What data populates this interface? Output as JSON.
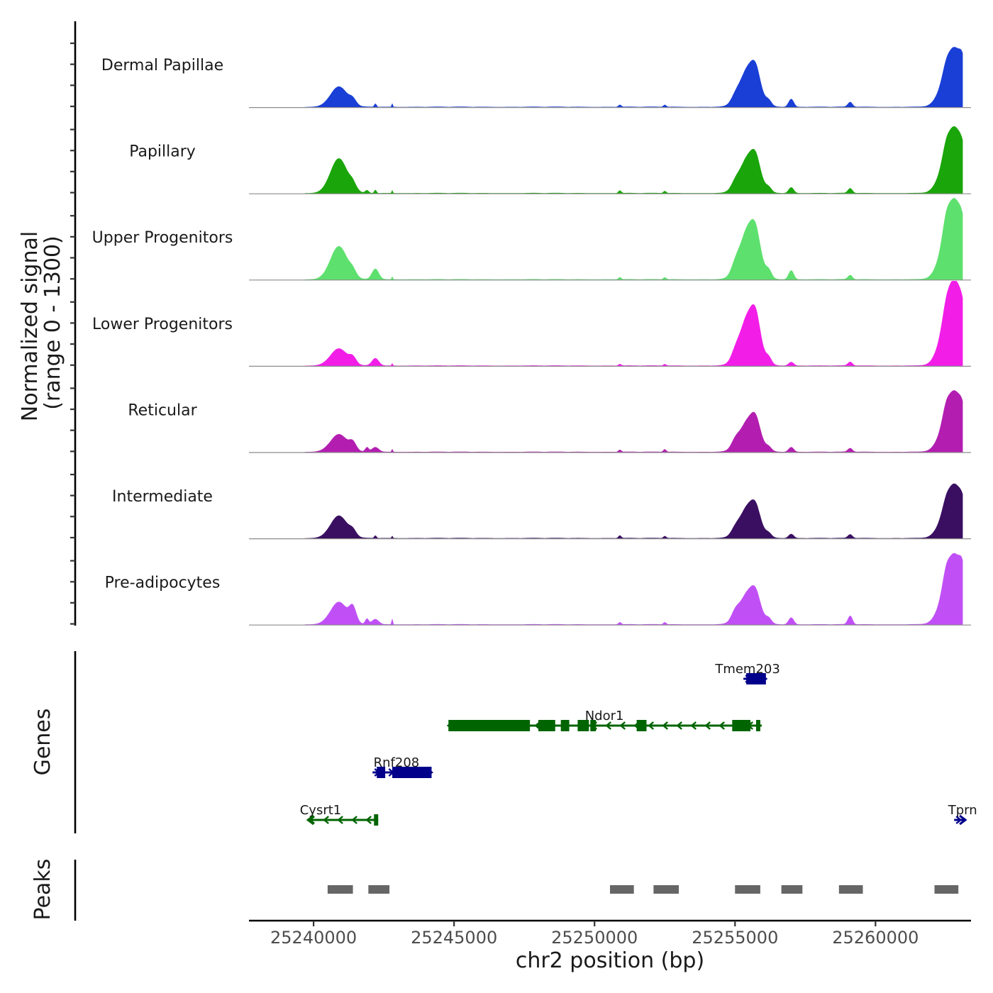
{
  "chart_data": {
    "type": "area",
    "title": "",
    "ylabel_line1": "Normalized signal",
    "ylabel_line2": "(range 0 - 1300)",
    "y_range": [
      0,
      1300
    ],
    "xlabel": "chr2 position (bp)",
    "xlim": [
      25237700,
      25263400
    ],
    "x_ticks": [
      25240000,
      25245000,
      25250000,
      25255000,
      25260000
    ],
    "x_tick_labels": [
      "25240000",
      "25245000",
      "25250000",
      "25255000",
      "25260000"
    ],
    "genes_label": "Genes",
    "peaks_label": "Peaks",
    "tracks": [
      {
        "name": "Dermal Papillae",
        "color": "#1a3fd6",
        "peaks": [
          [
            25240900,
            300,
            380
          ],
          [
            25241400,
            120,
            100
          ],
          [
            25242200,
            40,
            60
          ],
          [
            25242800,
            20,
            60
          ],
          [
            25250900,
            50,
            40
          ],
          [
            25252500,
            50,
            40
          ],
          [
            25255000,
            130,
            80
          ],
          [
            25255500,
            320,
            750
          ],
          [
            25255750,
            150,
            260
          ],
          [
            25256200,
            100,
            80
          ],
          [
            25257000,
            90,
            150
          ],
          [
            25259100,
            80,
            90
          ],
          [
            25262500,
            110,
            90
          ],
          [
            25262800,
            350,
            1120
          ],
          [
            25263100,
            100,
            230
          ]
        ]
      },
      {
        "name": "Papillary",
        "color": "#1aa50a",
        "peaks": [
          [
            25240900,
            300,
            650
          ],
          [
            25241400,
            120,
            110
          ],
          [
            25241900,
            60,
            50
          ],
          [
            25242200,
            40,
            60
          ],
          [
            25242800,
            20,
            50
          ],
          [
            25250900,
            50,
            50
          ],
          [
            25252500,
            50,
            40
          ],
          [
            25255000,
            130,
            90
          ],
          [
            25255500,
            320,
            700
          ],
          [
            25255750,
            150,
            250
          ],
          [
            25256200,
            100,
            70
          ],
          [
            25257000,
            90,
            110
          ],
          [
            25259100,
            80,
            90
          ],
          [
            25262500,
            110,
            120
          ],
          [
            25262800,
            350,
            1250
          ],
          [
            25263100,
            100,
            130
          ]
        ]
      },
      {
        "name": "Upper Progenitors",
        "color": "#5ee06e",
        "peaks": [
          [
            25240900,
            300,
            620
          ],
          [
            25241400,
            120,
            100
          ],
          [
            25242200,
            120,
            200
          ],
          [
            25242800,
            20,
            50
          ],
          [
            25250900,
            50,
            40
          ],
          [
            25252500,
            50,
            40
          ],
          [
            25255000,
            130,
            120
          ],
          [
            25255500,
            320,
            990
          ],
          [
            25255750,
            150,
            300
          ],
          [
            25256200,
            100,
            120
          ],
          [
            25257000,
            90,
            170
          ],
          [
            25259100,
            80,
            80
          ],
          [
            25262500,
            110,
            180
          ],
          [
            25262800,
            350,
            1520
          ],
          [
            25263100,
            100,
            180
          ]
        ]
      },
      {
        "name": "Lower Progenitors",
        "color": "#f21ee8",
        "peaks": [
          [
            25240900,
            300,
            320
          ],
          [
            25241400,
            120,
            120
          ],
          [
            25242200,
            120,
            140
          ],
          [
            25242800,
            20,
            40
          ],
          [
            25250900,
            50,
            30
          ],
          [
            25252500,
            50,
            30
          ],
          [
            25255000,
            130,
            100
          ],
          [
            25255500,
            320,
            970
          ],
          [
            25255750,
            150,
            350
          ],
          [
            25256200,
            100,
            100
          ],
          [
            25257000,
            90,
            70
          ],
          [
            25259100,
            80,
            70
          ],
          [
            25262500,
            110,
            120
          ],
          [
            25262800,
            350,
            1620
          ],
          [
            25263100,
            100,
            150
          ]
        ]
      },
      {
        "name": "Reticular",
        "color": "#b31eb0",
        "peaks": [
          [
            25240900,
            300,
            330
          ],
          [
            25241400,
            120,
            140
          ],
          [
            25241900,
            60,
            80
          ],
          [
            25242200,
            120,
            90
          ],
          [
            25242800,
            20,
            50
          ],
          [
            25250900,
            50,
            40
          ],
          [
            25252500,
            50,
            50
          ],
          [
            25255000,
            130,
            110
          ],
          [
            25255500,
            320,
            610
          ],
          [
            25255750,
            150,
            250
          ],
          [
            25256200,
            100,
            60
          ],
          [
            25257000,
            90,
            90
          ],
          [
            25259100,
            80,
            70
          ],
          [
            25262500,
            110,
            130
          ],
          [
            25262800,
            350,
            1150
          ],
          [
            25263100,
            100,
            160
          ]
        ]
      },
      {
        "name": "Intermediate",
        "color": "#3a0f62",
        "peaks": [
          [
            25240900,
            300,
            420
          ],
          [
            25241400,
            120,
            100
          ],
          [
            25242200,
            40,
            50
          ],
          [
            25242800,
            20,
            40
          ],
          [
            25250900,
            50,
            50
          ],
          [
            25252500,
            50,
            40
          ],
          [
            25255000,
            130,
            80
          ],
          [
            25255500,
            320,
            620
          ],
          [
            25255750,
            150,
            210
          ],
          [
            25256200,
            100,
            60
          ],
          [
            25257000,
            90,
            80
          ],
          [
            25259100,
            80,
            70
          ],
          [
            25262500,
            110,
            80
          ],
          [
            25262800,
            350,
            1020
          ],
          [
            25263100,
            100,
            120
          ]
        ]
      },
      {
        "name": "Pre-adipocytes",
        "color": "#c050f5",
        "peaks": [
          [
            25240900,
            300,
            420
          ],
          [
            25241400,
            120,
            270
          ],
          [
            25241900,
            60,
            100
          ],
          [
            25242200,
            120,
            100
          ],
          [
            25242800,
            20,
            100
          ],
          [
            25250900,
            50,
            40
          ],
          [
            25252500,
            50,
            40
          ],
          [
            25255000,
            130,
            130
          ],
          [
            25255500,
            320,
            620
          ],
          [
            25255750,
            150,
            220
          ],
          [
            25256200,
            100,
            80
          ],
          [
            25257000,
            90,
            130
          ],
          [
            25259100,
            80,
            160
          ],
          [
            25262500,
            110,
            160
          ],
          [
            25262800,
            350,
            1330
          ],
          [
            25263100,
            100,
            280
          ]
        ]
      }
    ],
    "genes": [
      {
        "name": "Tmem203",
        "strand": "+",
        "color": "#00008b",
        "row": 0,
        "start": 25255300,
        "end": 25256100,
        "exons": [
          [
            25255400,
            25256100
          ]
        ]
      },
      {
        "name": "Ndor1",
        "strand": "-",
        "color": "#006400",
        "row": 1,
        "start": 25244800,
        "end": 25255950,
        "exons": [
          [
            25244800,
            25247700
          ],
          [
            25248000,
            25248600
          ],
          [
            25248800,
            25249100
          ],
          [
            25249400,
            25249800
          ],
          [
            25249850,
            25250050
          ],
          [
            25251500,
            25251850
          ],
          [
            25254900,
            25255550
          ],
          [
            25255750,
            25255900
          ]
        ]
      },
      {
        "name": "Rnf208",
        "strand": "+",
        "color": "#00008b",
        "row": 2,
        "start": 25242100,
        "end": 25244200,
        "exons": [
          [
            25242250,
            25242550
          ],
          [
            25242800,
            25244200
          ]
        ]
      },
      {
        "name": "Cysrt1",
        "strand": "-",
        "color": "#006400",
        "row": 3,
        "start": 25239800,
        "end": 25242300,
        "exons": [
          [
            25242150,
            25242300
          ]
        ]
      },
      {
        "name": "Tprn",
        "strand": "+",
        "color": "#00008b",
        "row": 3,
        "start": 25262800,
        "end": 25263200,
        "exons": []
      }
    ],
    "peak_regions": [
      [
        25240500,
        25241400
      ],
      [
        25241950,
        25242700
      ],
      [
        25250550,
        25251400
      ],
      [
        25252100,
        25253000
      ],
      [
        25255000,
        25255900
      ],
      [
        25256650,
        25257400
      ],
      [
        25258700,
        25259550
      ],
      [
        25262100,
        25262950
      ]
    ]
  }
}
